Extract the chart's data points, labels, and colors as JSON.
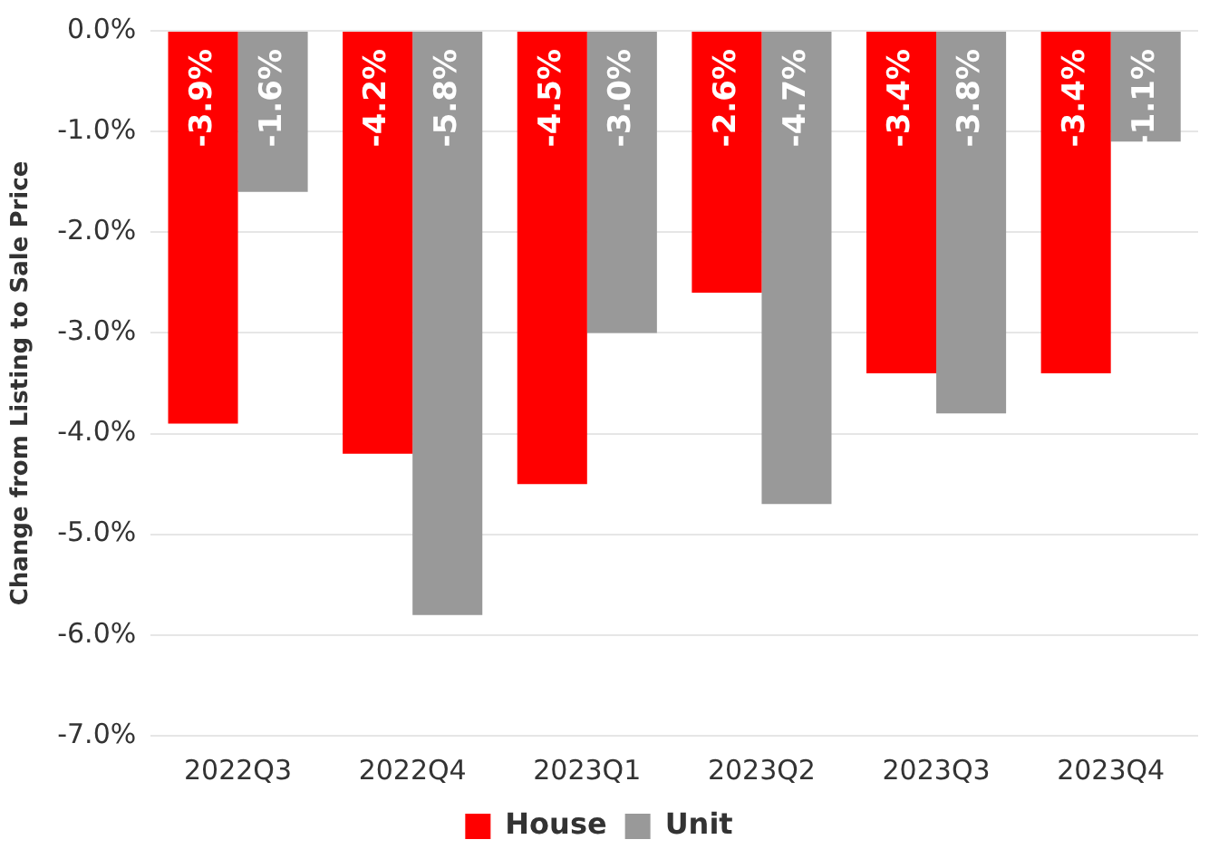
{
  "chart_data": {
    "type": "bar",
    "ylabel": "Change from Listing to Sale Price",
    "categories": [
      "2022Q3",
      "2022Q4",
      "2023Q1",
      "2023Q2",
      "2023Q3",
      "2023Q4"
    ],
    "series": [
      {
        "name": "House",
        "color": "#ff0000",
        "values": [
          -3.9,
          -4.2,
          -4.5,
          -2.6,
          -3.4,
          -3.4
        ],
        "value_labels": [
          "-3.9%",
          "-4.2%",
          "-4.5%",
          "-2.6%",
          "-3.4%",
          "-3.4%"
        ]
      },
      {
        "name": "Unit",
        "color": "#999999",
        "values": [
          -1.6,
          -5.8,
          -3.0,
          -4.7,
          -3.8,
          -1.1
        ],
        "value_labels": [
          "-1.6%",
          "-5.8%",
          "-3.0%",
          "-4.7%",
          "-3.8%",
          "-1.1%"
        ]
      }
    ],
    "ylim": [
      -7,
      0
    ],
    "yticks": [
      {
        "value": 0,
        "label": "0.0%"
      },
      {
        "value": -1,
        "label": "-1.0%"
      },
      {
        "value": -2,
        "label": "-2.0%"
      },
      {
        "value": -3,
        "label": "-3.0%"
      },
      {
        "value": -4,
        "label": "-4.0%"
      },
      {
        "value": -5,
        "label": "-5.0%"
      },
      {
        "value": -6,
        "label": "-6.0%"
      },
      {
        "value": -7,
        "label": "-7.0%"
      }
    ],
    "grid": "y",
    "legend": "bottom"
  }
}
